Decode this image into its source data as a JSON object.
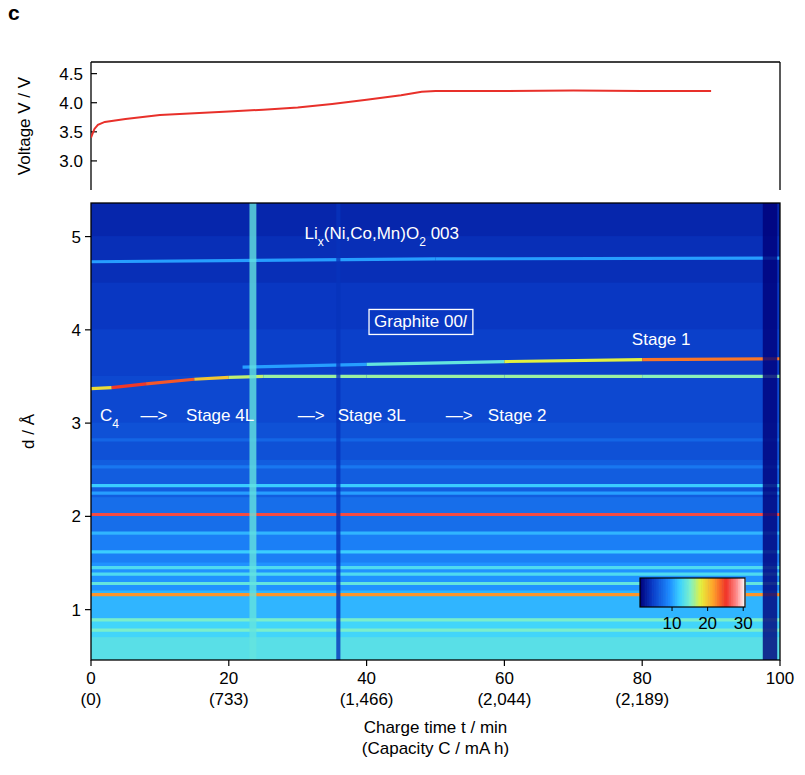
{
  "chart_data": [
    {
      "type": "line",
      "panel": "c",
      "ylabel": "Voltage V / V",
      "x": [
        0,
        0.5,
        1,
        2,
        5,
        10,
        15,
        20,
        25,
        30,
        35,
        40,
        45,
        48,
        50,
        60,
        70,
        80,
        90
      ],
      "values": [
        3.4,
        3.55,
        3.62,
        3.67,
        3.72,
        3.79,
        3.82,
        3.85,
        3.88,
        3.92,
        3.98,
        4.05,
        4.13,
        4.19,
        4.2,
        4.2,
        4.21,
        4.2,
        4.2
      ],
      "color": "#e8302a",
      "xlim": [
        0,
        100
      ],
      "ylim": [
        2.5,
        4.7
      ],
      "yticks": [
        {
          "value": 3,
          "label": "3.0"
        },
        3.5,
        {
          "value": 4,
          "label": "4.0"
        },
        4.5
      ],
      "tick_labels": "y"
    },
    {
      "type": "heatmap",
      "xlabel": "Charge time t / min",
      "xlabel2": "(Capacity C / mA h)",
      "ylabel": "d / Å",
      "xlim": [
        0,
        100
      ],
      "ylim": [
        0.46,
        5.36
      ],
      "xticks": [
        0,
        20,
        40,
        60,
        80,
        100
      ],
      "capacity_ticks": [
        {
          "value": 0,
          "label": "(0)"
        },
        {
          "value": 20,
          "label": "(733)"
        },
        {
          "value": 40,
          "label": "(1,466)"
        },
        {
          "value": 60,
          "label": "(2,044)"
        },
        {
          "value": 80,
          "label": "(2,189)"
        }
      ],
      "yticks": [
        1,
        2,
        3,
        4,
        5
      ],
      "colorbar": {
        "range": [
          1,
          30.5
        ],
        "ticks": [
          10,
          20,
          30
        ]
      },
      "background": {
        "d": [
          5.36,
          5.0,
          4.5,
          4.0,
          3.5,
          3.0,
          2.6,
          2.2,
          1.8,
          1.5,
          1.2,
          0.9,
          0.7,
          0.46
        ],
        "intensity": [
          3,
          3.5,
          4,
          4.5,
          5,
          5.5,
          6,
          7,
          8,
          9,
          10,
          12,
          13,
          14
        ]
      },
      "bands": [
        {
          "x": [
            0,
            50,
            100
          ],
          "d": [
            4.73,
            4.76,
            4.77
          ],
          "intensity": [
            10,
            10,
            10
          ]
        },
        {
          "x": [
            0,
            3,
            8,
            15,
            20,
            25,
            40,
            60,
            80,
            100
          ],
          "d": [
            3.37,
            3.38,
            3.42,
            3.47,
            3.49,
            3.5,
            3.5,
            3.5,
            3.5,
            3.5
          ],
          "intensity": [
            14,
            24,
            26,
            22,
            18,
            16,
            16,
            16,
            16,
            15
          ]
        },
        {
          "x": [
            22,
            40,
            60,
            80,
            100
          ],
          "d": [
            3.6,
            3.63,
            3.66,
            3.68,
            3.69
          ],
          "intensity": [
            8,
            12,
            16,
            20,
            26
          ]
        },
        {
          "x": [
            0,
            100
          ],
          "d": [
            2.82,
            2.82
          ],
          "intensity": [
            7,
            7
          ]
        },
        {
          "x": [
            0,
            100
          ],
          "d": [
            2.53,
            2.53
          ],
          "intensity": [
            8,
            8
          ]
        },
        {
          "x": [
            0,
            100
          ],
          "d": [
            2.33,
            2.33
          ],
          "intensity": [
            12,
            12
          ]
        },
        {
          "x": [
            0,
            100
          ],
          "d": [
            2.25,
            2.25
          ],
          "intensity": [
            10,
            10
          ]
        },
        {
          "x": [
            0,
            100
          ],
          "d": [
            2.02,
            2.02
          ],
          "intensity": [
            26,
            26
          ]
        },
        {
          "x": [
            0,
            100
          ],
          "d": [
            1.82,
            1.82
          ],
          "intensity": [
            11,
            11
          ]
        },
        {
          "x": [
            0,
            100
          ],
          "d": [
            1.62,
            1.62
          ],
          "intensity": [
            12,
            12
          ]
        },
        {
          "x": [
            0,
            100
          ],
          "d": [
            1.45,
            1.45
          ],
          "intensity": [
            13,
            13
          ]
        },
        {
          "x": [
            0,
            100
          ],
          "d": [
            1.38,
            1.38
          ],
          "intensity": [
            13,
            13
          ]
        },
        {
          "x": [
            0,
            100
          ],
          "d": [
            1.28,
            1.28
          ],
          "intensity": [
            14,
            14
          ]
        },
        {
          "x": [
            0,
            100
          ],
          "d": [
            1.16,
            1.16
          ],
          "intensity": [
            22,
            22
          ]
        },
        {
          "x": [
            0,
            100
          ],
          "d": [
            0.89,
            0.89
          ],
          "intensity": [
            15,
            15
          ]
        },
        {
          "x": [
            0,
            100
          ],
          "d": [
            0.78,
            0.78
          ],
          "intensity": [
            15,
            15
          ]
        }
      ],
      "stripes": [
        {
          "x": [
            23.0,
            24.0
          ],
          "intensity": 14
        },
        {
          "x": [
            35.6,
            36.2
          ],
          "intensity": 4
        },
        {
          "x": [
            97.5,
            99.6
          ],
          "intensity": 1
        }
      ],
      "annotations": [
        {
          "parts": [
            {
              "text": "Li"
            },
            {
              "text": "x",
              "sub": true
            },
            {
              "text": "(Ni,Co,Mn)O"
            },
            {
              "text": "2",
              "sub": true
            },
            {
              "text": " 003"
            }
          ]
        },
        {
          "parts": [
            {
              "text": "Graphite 00"
            },
            {
              "text": "l",
              "italic": true
            }
          ],
          "boxed": true
        },
        {
          "parts": [
            {
              "text": "Stage 1"
            }
          ]
        },
        {
          "parts": [
            {
              "text": "C"
            },
            {
              "text": "4",
              "sub": true
            }
          ]
        },
        {
          "parts": [
            {
              "text": "—>"
            }
          ]
        },
        {
          "parts": [
            {
              "text": "Stage 4L"
            }
          ]
        },
        {
          "parts": [
            {
              "text": "—>"
            }
          ]
        },
        {
          "parts": [
            {
              "text": "Stage 3L"
            }
          ]
        },
        {
          "parts": [
            {
              "text": "—>"
            }
          ]
        },
        {
          "parts": [
            {
              "text": "Stage 2"
            }
          ]
        }
      ]
    }
  ]
}
